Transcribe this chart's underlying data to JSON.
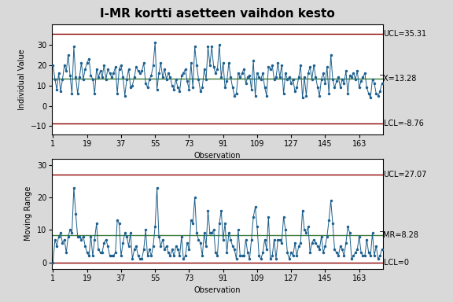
{
  "title": "I-MR kortti asetteen vaihdon kesto",
  "ucl_i": 35.31,
  "cl_i": 13.28,
  "lcl_i": -8.76,
  "ucl_mr": 27.07,
  "cl_mr": 8.28,
  "lcl_mr": 0,
  "xlabel": "Observation",
  "ylabel_i": "Individual Value",
  "ylabel_mr": "Moving Range",
  "bg_color": "#d9d9d9",
  "plot_bg": "#ffffff",
  "line_color": "#1c5f8a",
  "dot_color": "#1c6090",
  "cl_color": "#3a7a3a",
  "limit_color": "#8b0000",
  "x_ticks": [
    1,
    19,
    37,
    55,
    73,
    91,
    109,
    127,
    145,
    163
  ],
  "yticks_i": [
    -10,
    0,
    10,
    20,
    30
  ],
  "yticks_mr": [
    0,
    10,
    20,
    30
  ],
  "ylim_i": [
    -14,
    40
  ],
  "ylim_mr": [
    -2,
    32
  ],
  "title_fontsize": 11,
  "label_fontsize": 7,
  "tick_fontsize": 7,
  "annot_fontsize": 7,
  "individual_values": [
    20,
    13,
    8,
    16,
    7,
    13,
    20,
    17,
    25,
    15,
    6,
    29,
    14,
    6,
    14,
    21,
    13,
    18,
    21,
    23,
    15,
    13,
    6,
    18,
    14,
    17,
    14,
    20,
    13,
    18,
    16,
    14,
    16,
    19,
    6,
    18,
    20,
    14,
    5,
    13,
    18,
    9,
    10,
    14,
    19,
    17,
    16,
    17,
    21,
    11,
    9,
    13,
    15,
    20,
    31,
    8,
    16,
    21,
    14,
    18,
    13,
    16,
    14,
    10,
    8,
    13,
    9,
    7,
    15,
    16,
    18,
    12,
    8,
    21,
    9,
    29,
    20,
    13,
    7,
    9,
    18,
    13,
    29,
    20,
    29,
    19,
    16,
    18,
    30,
    14,
    21,
    9,
    12,
    21,
    14,
    9,
    5,
    6,
    16,
    14,
    16,
    18,
    11,
    14,
    15,
    8,
    22,
    5,
    16,
    14,
    13,
    16,
    9,
    5,
    19,
    18,
    20,
    13,
    14,
    21,
    14,
    20,
    6,
    16,
    13,
    14,
    11,
    13,
    7,
    9,
    14,
    20,
    4,
    14,
    5,
    16,
    19,
    13,
    20,
    14,
    9,
    5,
    13,
    16,
    11,
    19,
    6,
    25,
    13,
    9,
    12,
    14,
    9,
    13,
    11,
    17,
    6,
    15,
    14,
    16,
    13,
    17,
    9,
    12,
    14,
    16,
    9,
    6,
    4,
    13,
    11,
    6,
    5,
    7,
    11
  ]
}
